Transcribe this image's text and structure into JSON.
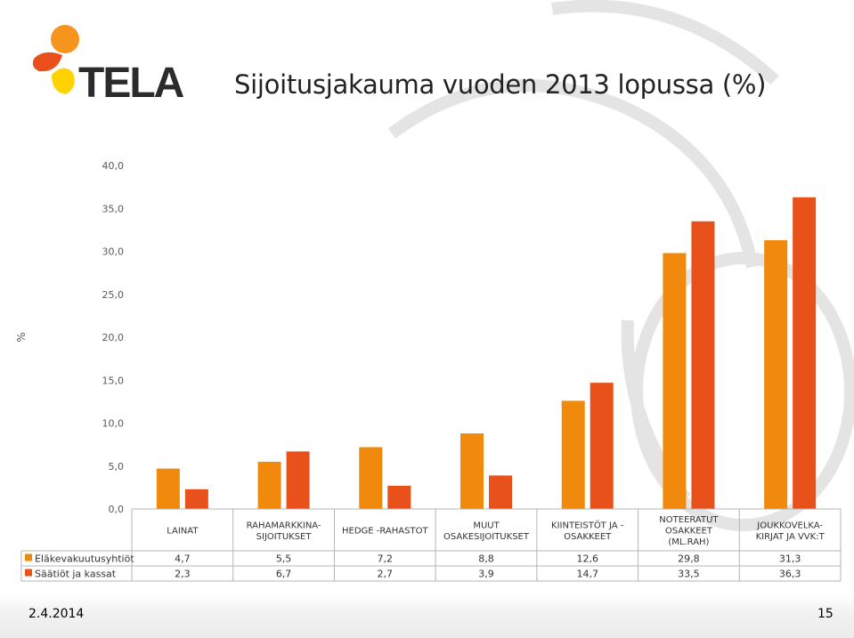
{
  "slide": {
    "title": "Sijoitusjakauma vuoden 2013 lopussa (%)",
    "logo_text": "TELA",
    "date": "2.4.2014",
    "page_number": "15"
  },
  "colors": {
    "series1": "#F0890C",
    "series2": "#E8511A",
    "logo_text": "#2b2b2b",
    "logo_orange": "#F7941D",
    "logo_red": "#E94E1B",
    "logo_yellow": "#FFD200"
  },
  "chart_data": {
    "type": "bar",
    "title": "",
    "ylabel": "%",
    "xlabel": "",
    "ylim": [
      0,
      40
    ],
    "yticks": [
      "0,0",
      "5,0",
      "10,0",
      "15,0",
      "20,0",
      "25,0",
      "30,0",
      "35,0",
      "40,0"
    ],
    "categories": [
      [
        "LAINAT"
      ],
      [
        "RAHAMARKKINA-",
        "SIJOITUKSET"
      ],
      [
        "HEDGE -RAHASTOT"
      ],
      [
        "MUUT",
        "OSAKESIJOITUKSET"
      ],
      [
        "KIINTEISTÖT JA -",
        "OSAKKEET"
      ],
      [
        "NOTEERATUT",
        "OSAKKEET",
        "(ML.RAH)"
      ],
      [
        "JOUKKOVELKA-",
        "KIRJAT JA VVK:T"
      ]
    ],
    "series": [
      {
        "name": "Eläkevakuutusyhtiöt",
        "values": [
          4.7,
          5.5,
          7.2,
          8.8,
          12.6,
          29.8,
          31.3
        ],
        "labels": [
          "4,7",
          "5,5",
          "7,2",
          "8,8",
          "12,6",
          "29,8",
          "31,3"
        ]
      },
      {
        "name": "Säätiöt ja kassat",
        "values": [
          2.3,
          6.7,
          2.7,
          3.9,
          14.7,
          33.5,
          36.3
        ],
        "labels": [
          "2,3",
          "6,7",
          "2,7",
          "3,9",
          "14,7",
          "33,5",
          "36,3"
        ]
      }
    ],
    "legend": "data-table",
    "grid": false
  }
}
